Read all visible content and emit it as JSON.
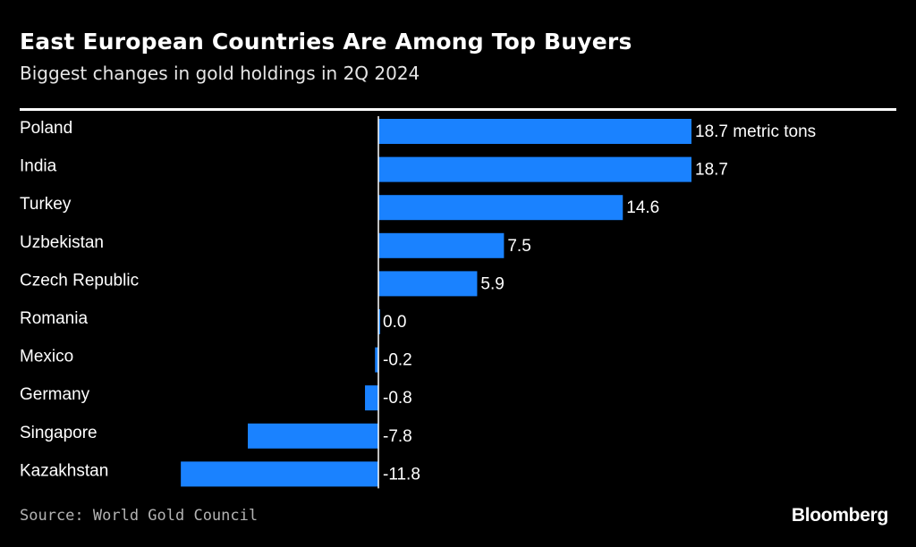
{
  "header": {
    "title": "East European Countries Are Among Top Buyers",
    "subtitle": "Biggest changes in gold holdings in 2Q 2024"
  },
  "chart_data": {
    "type": "bar",
    "orientation": "horizontal",
    "title": "East European Countries Are Among Top Buyers",
    "subtitle": "Biggest changes in gold holdings in 2Q 2024",
    "categories": [
      "Poland",
      "India",
      "Turkey",
      "Uzbekistan",
      "Czech Republic",
      "Romania",
      "Mexico",
      "Germany",
      "Singapore",
      "Kazakhstan"
    ],
    "values": [
      18.7,
      18.7,
      14.6,
      7.5,
      5.9,
      0.0,
      -0.2,
      -0.8,
      -7.8,
      -11.8
    ],
    "value_labels": [
      "18.7 metric tons",
      "18.7",
      "14.6",
      "7.5",
      "5.9",
      "0.0",
      "-0.2",
      "-0.8",
      "-7.8",
      "-11.8"
    ],
    "unit": "metric tons",
    "xlim": [
      -11.8,
      18.7
    ],
    "grid": false,
    "bar_color": "#1a82ff"
  },
  "footer": {
    "source": "Source: World Gold Council",
    "brand": "Bloomberg"
  },
  "colors": {
    "background": "#000000",
    "text": "#ffffff",
    "bar": "#1a82ff",
    "source_text": "#b3b3b3"
  }
}
